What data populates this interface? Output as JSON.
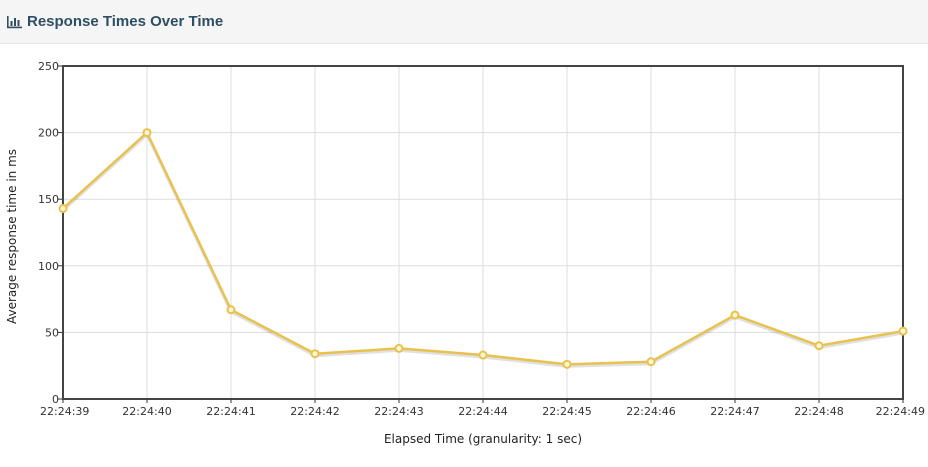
{
  "header": {
    "title": "Response Times Over Time",
    "icon": "bar-chart-icon"
  },
  "chart_data": {
    "type": "line",
    "title": "",
    "xlabel": "Elapsed Time (granularity: 1 sec)",
    "ylabel": "Average response time in ms",
    "x": [
      "22:24:39",
      "22:24:40",
      "22:24:41",
      "22:24:42",
      "22:24:43",
      "22:24:44",
      "22:24:45",
      "22:24:46",
      "22:24:47",
      "22:24:48",
      "22:24:49"
    ],
    "y_ticks": [
      0,
      50,
      100,
      150,
      200,
      250
    ],
    "ylim": [
      0,
      250
    ],
    "grid": true,
    "series": [
      {
        "color": "#e8c14f",
        "values": [
          143,
          200,
          67,
          34,
          38,
          33,
          26,
          28,
          63,
          40,
          51
        ]
      }
    ]
  }
}
